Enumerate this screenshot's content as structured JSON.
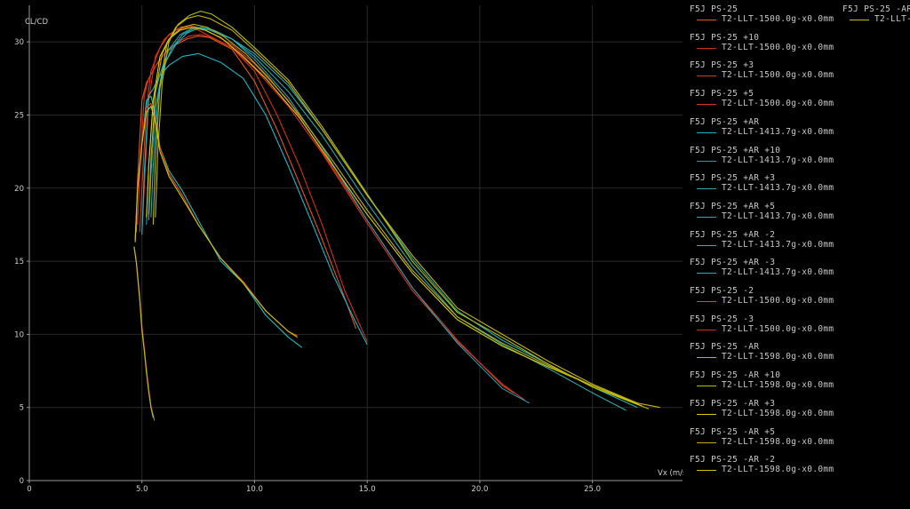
{
  "chart_data": {
    "type": "line",
    "title": "",
    "xlabel": "Vx (m/s",
    "ylabel": "CL/CD",
    "xlim": [
      0,
      29
    ],
    "ylim": [
      0,
      32.5
    ],
    "x_ticks": [
      0,
      5.0,
      10.0,
      15.0,
      20.0,
      25.0
    ],
    "x_tick_labels": [
      "0",
      "5.0",
      "10.0",
      "15.0",
      "20.0",
      "25.0"
    ],
    "y_ticks": [
      0,
      5,
      10,
      15,
      20,
      25,
      30
    ],
    "y_tick_labels": [
      "0",
      "5",
      "10",
      "15",
      "20",
      "25",
      "30"
    ],
    "grid": true,
    "legend_position": "right",
    "series": [
      {
        "name": "F5J PS-25",
        "sub": "T2-LLT-1500.0g-x0.0mm",
        "color": "#e05a1a",
        "x": [
          4.75,
          4.8,
          5.0,
          5.2,
          5.6,
          6.0,
          6.5,
          7.0,
          7.5,
          8.0,
          9.0,
          10.0,
          11.0,
          12.0,
          13.0,
          14.0,
          14.5
        ],
        "y": [
          17.0,
          20.5,
          26.0,
          27.2,
          28.3,
          29.2,
          29.8,
          30.2,
          30.4,
          30.3,
          29.5,
          27.3,
          24.0,
          20.3,
          16.5,
          12.5,
          10.4
        ]
      },
      {
        "name": "F5J PS-25 +10",
        "sub": "T2-LLT-1500.0g-x0.0mm",
        "color": "#d03018",
        "x": [
          4.8,
          4.9,
          5.1,
          5.3,
          5.7,
          6.1,
          6.6,
          7.1,
          7.6,
          8.1,
          9.0,
          10.0,
          11.0,
          12.0,
          13.0,
          14.0,
          15.0
        ],
        "y": [
          17.5,
          21.0,
          26.3,
          27.5,
          28.6,
          29.4,
          30.0,
          30.4,
          30.5,
          30.3,
          29.6,
          28.0,
          25.0,
          21.5,
          17.5,
          13.0,
          9.5
        ]
      },
      {
        "name": "F5J PS-25 +3",
        "sub": "T2-LLT-1500.0g-x0.0mm",
        "color": "#d04010",
        "x": [
          4.9,
          5.0,
          5.2,
          5.4,
          5.8,
          6.2,
          6.7,
          7.2,
          7.7,
          8.2,
          9.0,
          10.0,
          11.5,
          13.0,
          15.0,
          17.0,
          19.0,
          21.0,
          21.5
        ],
        "y": [
          17.0,
          20.0,
          25.5,
          28.0,
          29.6,
          30.5,
          31.0,
          31.1,
          30.9,
          30.5,
          29.8,
          28.5,
          26.0,
          22.5,
          17.8,
          13.2,
          9.6,
          6.5,
          6.0
        ]
      },
      {
        "name": "F5J PS-25 +5",
        "sub": "T2-LLT-1500.0g-x0.0mm",
        "color": "#e03020",
        "x": [
          5.0,
          5.1,
          5.3,
          5.6,
          6.0,
          6.5,
          7.0,
          7.5,
          8.0,
          9.0,
          10.0,
          11.5,
          13.0,
          15.0,
          17.0,
          19.0,
          21.0,
          22.0
        ],
        "y": [
          17.0,
          20.0,
          26.0,
          29.0,
          30.2,
          30.8,
          31.0,
          30.8,
          30.4,
          29.6,
          28.2,
          25.6,
          22.4,
          17.6,
          13.0,
          9.5,
          6.6,
          5.5
        ]
      },
      {
        "name": "F5J PS-25 +AR",
        "sub": "T2-LLT-1413.7g-x0.0mm",
        "color": "#17b6c8",
        "x": [
          5.0,
          5.1,
          5.3,
          5.5,
          5.8,
          6.2,
          6.8,
          7.5,
          8.5,
          9.5,
          10.5,
          11.5,
          12.5,
          13.5,
          14.5,
          15.0
        ],
        "y": [
          16.8,
          21.0,
          26.3,
          26.8,
          27.7,
          28.4,
          29.0,
          29.2,
          28.6,
          27.5,
          25.0,
          21.5,
          17.8,
          14.0,
          10.8,
          9.3
        ]
      },
      {
        "name": "F5J PS-25 +AR +10",
        "sub": "T2-LLT-1413.7g-x0.0mm",
        "color": "#1ea0b4",
        "x": [
          5.2,
          5.3,
          5.5,
          5.8,
          6.2,
          6.7,
          7.3,
          8.0,
          9.0,
          10.0,
          11.5,
          13.0,
          15.0,
          17.0,
          19.0,
          21.0,
          22.2
        ],
        "y": [
          17.5,
          21.5,
          26.0,
          27.8,
          29.5,
          30.5,
          31.0,
          30.8,
          30.2,
          28.8,
          26.2,
          22.8,
          17.8,
          13.2,
          9.4,
          6.3,
          5.3
        ]
      },
      {
        "name": "F5J PS-25 +AR +3",
        "sub": "T2-LLT-1413.7g-x0.0mm",
        "color": "#2aa7a7",
        "x": [
          5.3,
          5.4,
          5.6,
          5.9,
          6.3,
          6.8,
          7.4,
          8.0,
          9.0,
          10.0,
          11.5,
          13.0,
          15.0,
          17.0,
          19.0,
          21.0,
          23.0,
          25.0,
          26.5
        ],
        "y": [
          17.8,
          21.0,
          25.5,
          28.0,
          29.5,
          30.5,
          31.0,
          30.9,
          30.2,
          29.0,
          26.6,
          23.6,
          19.0,
          14.7,
          11.2,
          9.3,
          7.7,
          6.0,
          4.8
        ]
      },
      {
        "name": "F5J PS-25 +AR +5",
        "sub": "T2-LLT-1413.7g-x0.0mm",
        "color": "#20b0b8",
        "x": [
          5.4,
          5.5,
          5.7,
          6.0,
          6.5,
          7.0,
          7.6,
          8.2,
          9.0,
          10.0,
          11.5,
          13.0,
          15.0,
          17.0,
          19.0,
          21.0,
          23.0,
          25.0,
          27.0
        ],
        "y": [
          18.0,
          21.5,
          26.0,
          28.5,
          29.8,
          30.6,
          31.0,
          30.8,
          30.2,
          29.2,
          27.0,
          24.0,
          19.5,
          15.2,
          11.6,
          9.6,
          8.0,
          6.4,
          5.0
        ]
      },
      {
        "name": "F5J PS-25 +AR -2",
        "sub": "T2-LLT-1413.7g-x0.0mm",
        "color": "#15c0c0",
        "x": [
          4.7,
          4.8,
          5.0,
          5.2,
          5.4,
          5.6,
          5.8,
          6.2,
          6.8,
          7.5,
          8.5,
          9.5,
          10.5,
          11.5,
          12.1
        ],
        "y": [
          16.5,
          20.0,
          23.0,
          26.0,
          26.3,
          25.0,
          22.8,
          21.2,
          19.8,
          17.8,
          15.0,
          13.5,
          11.3,
          9.8,
          9.1
        ]
      },
      {
        "name": "F5J PS-25 +AR -3",
        "sub": "T2-LLT-1413.7g-x0.0mm",
        "color": "#19b2c8",
        "x": [
          4.65,
          4.75,
          4.9,
          5.0,
          5.1,
          5.2,
          5.3,
          5.4,
          5.5,
          5.55
        ],
        "y": [
          16.0,
          15.0,
          12.5,
          10.5,
          9.0,
          7.5,
          6.2,
          5.0,
          4.5,
          4.1
        ]
      },
      {
        "name": "F5J PS-25 -2",
        "sub": "T2-LLT-1500.0g-x0.0mm",
        "color": "#e04a20",
        "x": [
          4.7,
          4.8,
          5.0,
          5.2,
          5.4,
          5.6,
          5.8,
          6.2,
          6.8,
          7.5,
          8.5,
          9.5,
          10.5,
          11.5,
          11.9
        ],
        "y": [
          16.4,
          20.0,
          23.2,
          25.5,
          25.8,
          24.8,
          22.8,
          21.0,
          19.5,
          17.5,
          15.2,
          13.6,
          11.6,
          10.2,
          9.9
        ]
      },
      {
        "name": "F5J PS-25 -3",
        "sub": "T2-LLT-1500.0g-x0.0mm",
        "color": "#d02a1a",
        "x": [
          4.65,
          4.75,
          4.9,
          5.0,
          5.1,
          5.2,
          5.3,
          5.4,
          5.5
        ],
        "y": [
          16.0,
          15.0,
          12.6,
          10.6,
          9.1,
          7.6,
          6.3,
          5.1,
          4.4
        ]
      },
      {
        "name": "F5J PS-25 -AR",
        "sub": "T2-LLT-1598.0g-x0.0mm",
        "color": "#c8b400",
        "x": [
          5.5,
          5.6,
          5.8,
          6.1,
          6.5,
          7.0,
          7.5,
          8.0,
          9.0,
          10.0,
          11.5,
          13.0,
          15.0,
          17.0,
          19.0,
          21.0,
          23.0,
          25.0,
          27.0,
          28.0
        ],
        "y": [
          17.5,
          22.0,
          27.0,
          29.8,
          31.0,
          31.6,
          31.8,
          31.6,
          30.8,
          29.4,
          27.2,
          24.0,
          19.5,
          15.4,
          11.8,
          10.0,
          8.2,
          6.6,
          5.3,
          5.0
        ]
      },
      {
        "name": "F5J PS-25 -AR +10",
        "sub": "T2-LLT-1598.0g-x0.0mm",
        "color": "#b4c000",
        "x": [
          5.6,
          5.7,
          5.9,
          6.2,
          6.6,
          7.1,
          7.6,
          8.1,
          9.0,
          10.0,
          11.5,
          13.0,
          15.0,
          17.0,
          19.0,
          21.0,
          23.0,
          25.0,
          27.5
        ],
        "y": [
          18.0,
          22.5,
          27.2,
          30.0,
          31.2,
          31.8,
          32.1,
          31.9,
          31.0,
          29.6,
          27.4,
          24.2,
          19.6,
          15.0,
          11.5,
          9.8,
          8.0,
          6.4,
          4.9
        ]
      },
      {
        "name": "F5J PS-25 -AR +3",
        "sub": "T2-LLT-1598.0g-x0.0mm",
        "color": "#d8d000",
        "x": [
          5.2,
          5.3,
          5.5,
          5.8,
          6.2,
          6.7,
          7.2,
          7.8,
          8.5,
          9.5,
          10.5,
          12.0,
          13.5,
          15.0,
          17.0,
          19.0,
          21.0,
          23.0,
          25.0,
          27.2
        ],
        "y": [
          18.0,
          21.5,
          26.0,
          29.0,
          30.2,
          30.8,
          31.0,
          30.8,
          30.3,
          29.0,
          27.5,
          24.8,
          21.5,
          18.2,
          14.2,
          11.0,
          9.2,
          7.8,
          6.5,
          5.1
        ]
      },
      {
        "name": "F5J PS-25 -AR +5",
        "sub": "T2-LLT-1598.0g-x0.0mm",
        "color": "#c0b000",
        "x": [
          5.3,
          5.4,
          5.6,
          5.9,
          6.3,
          6.8,
          7.3,
          7.9,
          8.6,
          9.6,
          10.6,
          12.0,
          13.5,
          15.0,
          17.0,
          19.0,
          21.0,
          23.0,
          25.0,
          27.0
        ],
        "y": [
          18.2,
          22.0,
          26.5,
          29.2,
          30.4,
          31.0,
          31.2,
          31.0,
          30.4,
          29.2,
          27.6,
          25.0,
          21.8,
          18.5,
          14.4,
          11.2,
          9.4,
          7.9,
          6.5,
          5.3
        ]
      },
      {
        "name": "F5J PS-25 -AR -2",
        "sub": "T2-LLT-1598.0g-x0.0mm",
        "color": "#d0c400",
        "x": [
          4.7,
          4.8,
          5.0,
          5.2,
          5.4,
          5.6,
          5.8,
          6.2,
          6.8,
          7.5,
          8.5,
          9.5,
          10.5,
          11.5,
          11.9
        ],
        "y": [
          16.3,
          19.8,
          23.0,
          25.2,
          25.6,
          24.5,
          22.5,
          20.8,
          19.3,
          17.5,
          15.2,
          13.5,
          11.6,
          10.2,
          9.8
        ]
      },
      {
        "name": "F5J PS-25 -AR",
        "sub": "T2-LLT-",
        "color": "#c8c000",
        "x": [
          4.65,
          4.75,
          4.9,
          5.0,
          5.1,
          5.2,
          5.3,
          5.4,
          5.5
        ],
        "y": [
          16.0,
          14.9,
          12.4,
          10.3,
          8.9,
          7.4,
          6.1,
          5.0,
          4.3
        ]
      }
    ]
  }
}
